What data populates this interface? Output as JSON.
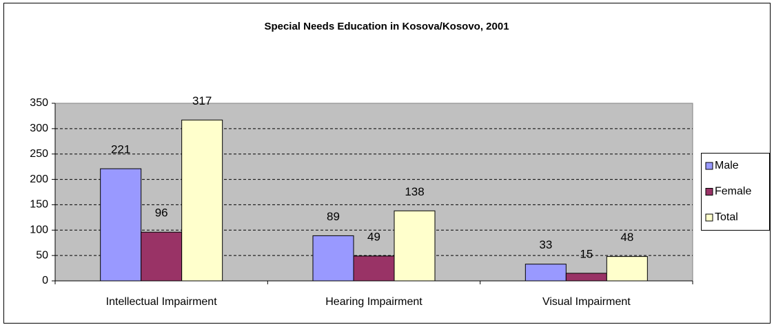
{
  "chart_data": {
    "type": "bar",
    "title": "Special Needs Education in Kosova/Kosovo, 2001",
    "categories": [
      "Intellectual Impairment",
      "Hearing Impairment",
      "Visual Impairment"
    ],
    "series": [
      {
        "name": "Male",
        "color": "#9999ff",
        "values": [
          221,
          89,
          33
        ]
      },
      {
        "name": "Female",
        "color": "#993366",
        "values": [
          96,
          49,
          15
        ]
      },
      {
        "name": "Total",
        "color": "#ffffcc",
        "values": [
          317,
          138,
          48
        ]
      }
    ],
    "ylim": [
      0,
      350
    ],
    "yticks": [
      0,
      50,
      100,
      150,
      200,
      250,
      300,
      350
    ],
    "grid": true,
    "legend": "right"
  }
}
